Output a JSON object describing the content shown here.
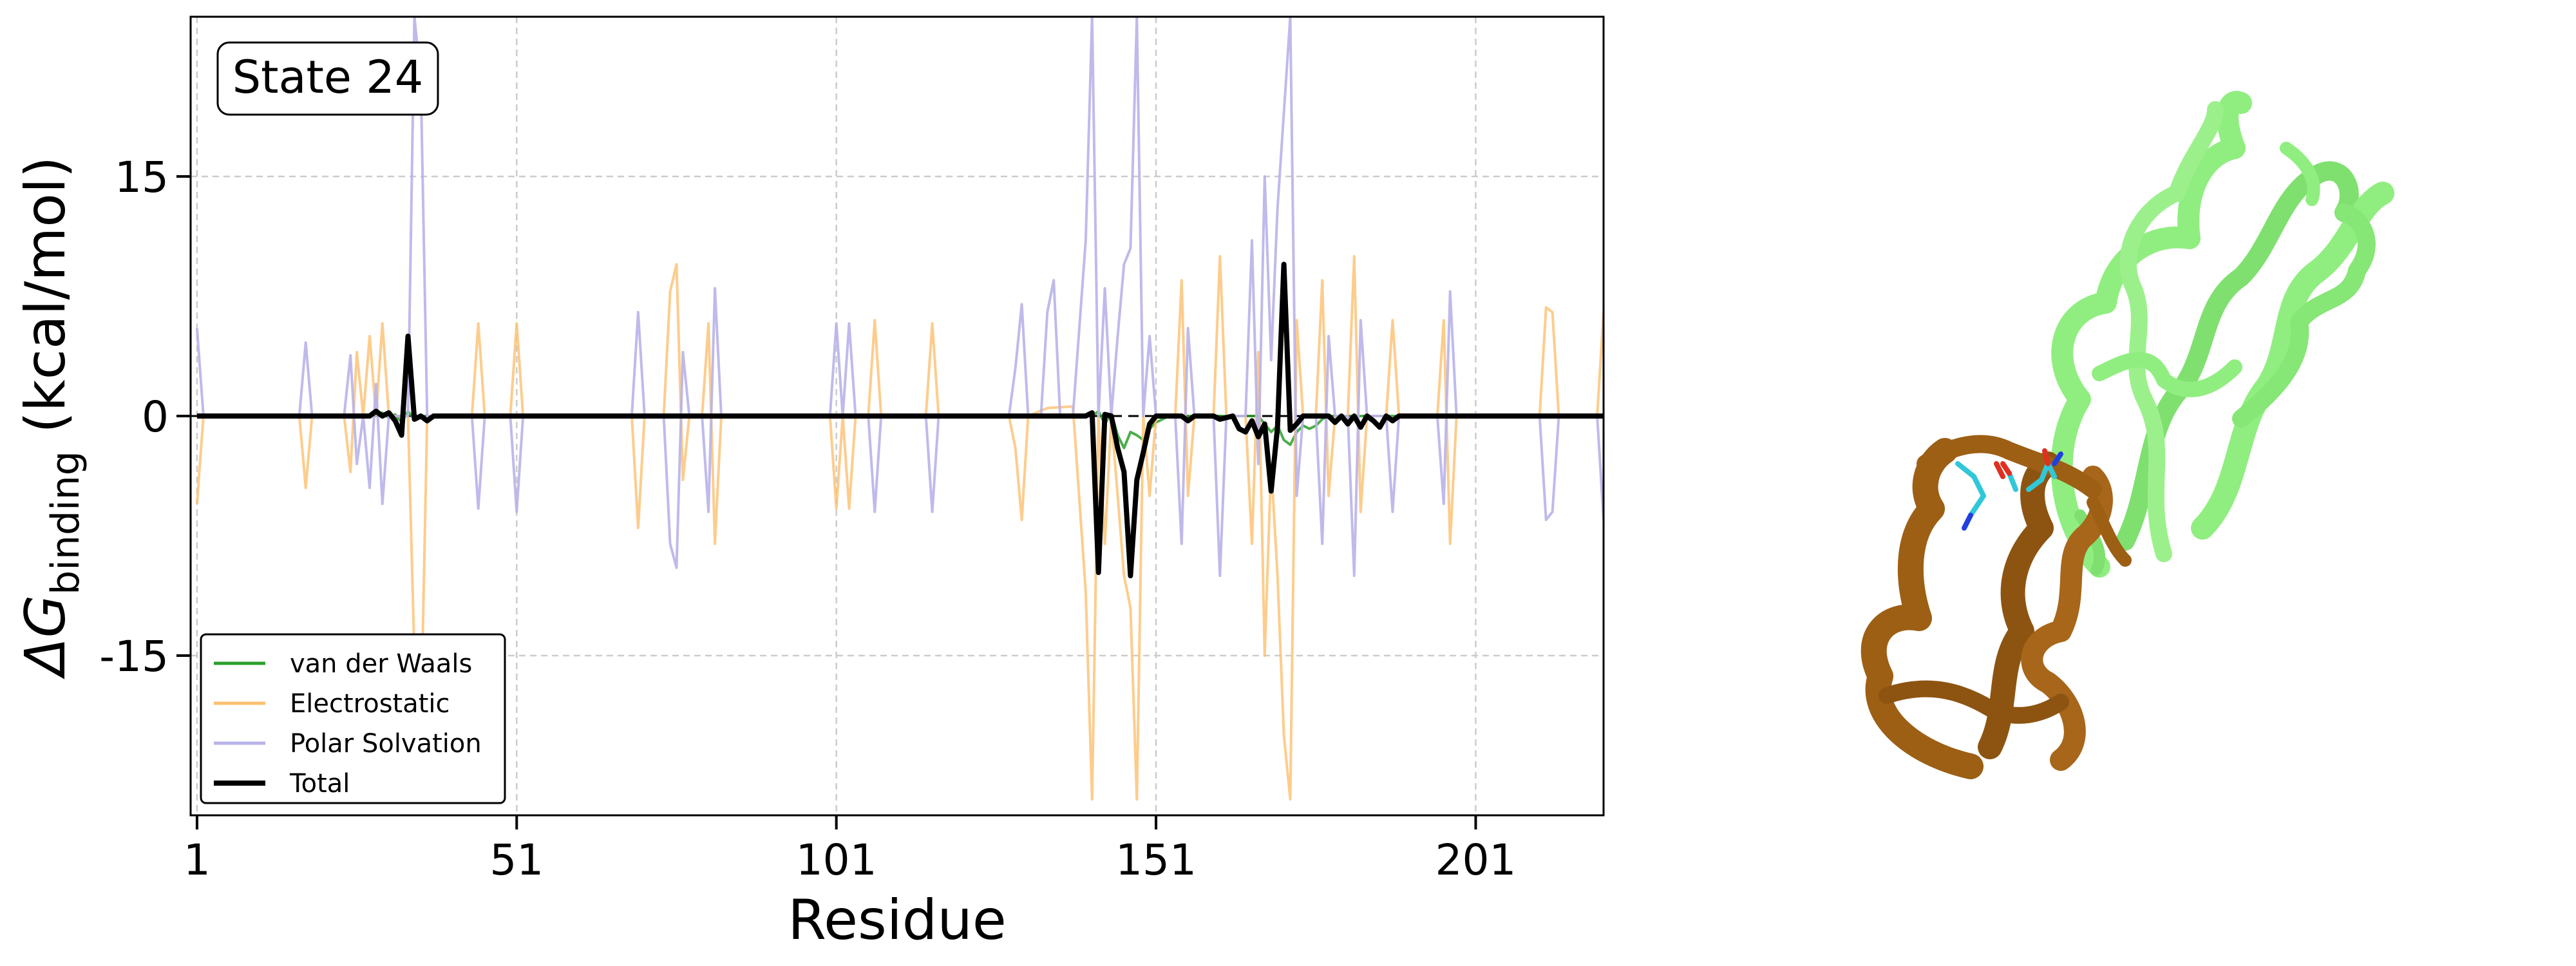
{
  "chart_data": {
    "type": "line",
    "title": "",
    "annotation": "State 24",
    "xlabel": "Residue",
    "ylabel_prefix": "ΔG",
    "ylabel_subscript": "binding",
    "ylabel_suffix": " (kcal/mol)",
    "xlim": [
      0,
      221
    ],
    "ylim": [
      -25,
      25
    ],
    "xticks": [
      1,
      51,
      101,
      151,
      201
    ],
    "yticks": [
      15,
      0,
      -15
    ],
    "ytick_labels": [
      "15",
      "0",
      "-15"
    ],
    "grid": true,
    "legend_position": "lower-left",
    "series": [
      {
        "name": "van der Waals",
        "color": "#2ca02c",
        "points": [
          [
            1,
            0
          ],
          [
            28,
            0
          ],
          [
            30,
            0.2
          ],
          [
            31,
            -0.1
          ],
          [
            32,
            0.1
          ],
          [
            33,
            -0.4
          ],
          [
            34,
            0.3
          ],
          [
            35,
            -0.2
          ],
          [
            36,
            0
          ],
          [
            141,
            0
          ],
          [
            142,
            0.3
          ],
          [
            143,
            -0.5
          ],
          [
            144,
            0.2
          ],
          [
            145,
            -1.2
          ],
          [
            146,
            -2.0
          ],
          [
            147,
            -1.0
          ],
          [
            148,
            -1.2
          ],
          [
            149,
            -1.5
          ],
          [
            150,
            -0.8
          ],
          [
            151,
            -0.4
          ],
          [
            152,
            -0.2
          ],
          [
            153,
            0
          ],
          [
            167,
            0
          ],
          [
            168,
            -0.5
          ],
          [
            169,
            -1.0
          ],
          [
            170,
            -0.6
          ],
          [
            171,
            -1.5
          ],
          [
            172,
            -1.8
          ],
          [
            173,
            -1.0
          ],
          [
            174,
            -0.6
          ],
          [
            175,
            -0.8
          ],
          [
            176,
            -0.6
          ],
          [
            177,
            -0.2
          ],
          [
            178,
            0
          ],
          [
            221,
            0
          ]
        ]
      },
      {
        "name": "Electrostatic",
        "color": "#fdbf6f",
        "points": [
          [
            1,
            -5.5
          ],
          [
            2,
            0
          ],
          [
            17,
            0
          ],
          [
            18,
            -4.5
          ],
          [
            19,
            0
          ],
          [
            24,
            0
          ],
          [
            25,
            -3.5
          ],
          [
            26,
            4
          ],
          [
            27,
            0
          ],
          [
            28,
            5
          ],
          [
            29,
            0
          ],
          [
            30,
            5.8
          ],
          [
            31,
            0
          ],
          [
            34,
            0
          ],
          [
            35,
            -15
          ],
          [
            36,
            -20
          ],
          [
            37,
            0
          ],
          [
            44,
            0
          ],
          [
            45,
            5.8
          ],
          [
            46,
            0
          ],
          [
            50,
            0
          ],
          [
            51,
            5.8
          ],
          [
            52,
            0
          ],
          [
            69,
            0
          ],
          [
            70,
            -7
          ],
          [
            71,
            0
          ],
          [
            74,
            0
          ],
          [
            75,
            7.8
          ],
          [
            76,
            9.5
          ],
          [
            77,
            -4
          ],
          [
            78,
            0
          ],
          [
            80,
            0
          ],
          [
            81,
            5.8
          ],
          [
            82,
            -8
          ],
          [
            83,
            0
          ],
          [
            100,
            0
          ],
          [
            101,
            -5.8
          ],
          [
            102,
            0
          ],
          [
            102,
            0
          ],
          [
            103,
            -5.8
          ],
          [
            104,
            0
          ],
          [
            106,
            0
          ],
          [
            107,
            6
          ],
          [
            108,
            0
          ],
          [
            115,
            0
          ],
          [
            116,
            5.8
          ],
          [
            117,
            0
          ],
          [
            128,
            0
          ],
          [
            129,
            -2
          ],
          [
            130,
            -6.5
          ],
          [
            131,
            0
          ],
          [
            134,
            0.5
          ],
          [
            138,
            0.6
          ],
          [
            140,
            -11
          ],
          [
            141,
            -24
          ],
          [
            142,
            0
          ],
          [
            143,
            -8
          ],
          [
            144,
            0
          ],
          [
            145,
            -5
          ],
          [
            146,
            -10
          ],
          [
            147,
            -12
          ],
          [
            148,
            -24
          ],
          [
            149,
            0
          ],
          [
            150,
            -5
          ],
          [
            151,
            0
          ],
          [
            154,
            0
          ],
          [
            155,
            8.5
          ],
          [
            156,
            -5
          ],
          [
            157,
            0
          ],
          [
            160,
            0
          ],
          [
            161,
            10
          ],
          [
            162,
            0
          ],
          [
            165,
            0
          ],
          [
            166,
            -8
          ],
          [
            167,
            4
          ],
          [
            168,
            -15
          ],
          [
            169,
            -3
          ],
          [
            170,
            -10
          ],
          [
            171,
            -20
          ],
          [
            172,
            -24
          ],
          [
            173,
            6
          ],
          [
            174,
            0
          ],
          [
            176,
            0
          ],
          [
            177,
            8.5
          ],
          [
            178,
            -5
          ],
          [
            179,
            0
          ],
          [
            181,
            0
          ],
          [
            182,
            10
          ],
          [
            183,
            -6
          ],
          [
            184,
            0
          ],
          [
            187,
            0
          ],
          [
            188,
            6
          ],
          [
            189,
            0
          ],
          [
            195,
            0
          ],
          [
            196,
            6
          ],
          [
            197,
            -8
          ],
          [
            198,
            0
          ],
          [
            211,
            0
          ],
          [
            212,
            6.8
          ],
          [
            213,
            6.5
          ],
          [
            214,
            0
          ],
          [
            220,
            0
          ],
          [
            221,
            6.5
          ]
        ]
      },
      {
        "name": "Polar Solvation",
        "color": "#b8b3e9",
        "points": [
          [
            1,
            5.5
          ],
          [
            2,
            0
          ],
          [
            17,
            0
          ],
          [
            18,
            4.6
          ],
          [
            19,
            0
          ],
          [
            24,
            0
          ],
          [
            25,
            3.8
          ],
          [
            26,
            -3
          ],
          [
            27,
            0
          ],
          [
            28,
            -4.5
          ],
          [
            29,
            2
          ],
          [
            30,
            -5.5
          ],
          [
            31,
            0
          ],
          [
            34,
            0
          ],
          [
            35,
            25
          ],
          [
            36,
            21
          ],
          [
            37,
            0
          ],
          [
            44,
            0
          ],
          [
            45,
            -5.8
          ],
          [
            46,
            0
          ],
          [
            50,
            0
          ],
          [
            51,
            -6
          ],
          [
            52,
            0
          ],
          [
            69,
            0
          ],
          [
            70,
            6.5
          ],
          [
            71,
            0
          ],
          [
            74,
            0
          ],
          [
            75,
            -8
          ],
          [
            76,
            -9.5
          ],
          [
            77,
            4
          ],
          [
            78,
            0
          ],
          [
            80,
            0
          ],
          [
            81,
            -6
          ],
          [
            82,
            8
          ],
          [
            83,
            0
          ],
          [
            100,
            0
          ],
          [
            101,
            5.8
          ],
          [
            102,
            0
          ],
          [
            102,
            0
          ],
          [
            103,
            5.8
          ],
          [
            104,
            0
          ],
          [
            106,
            0
          ],
          [
            107,
            -6
          ],
          [
            108,
            0
          ],
          [
            115,
            0
          ],
          [
            116,
            -6
          ],
          [
            117,
            0
          ],
          [
            128,
            0
          ],
          [
            129,
            3
          ],
          [
            130,
            7
          ],
          [
            131,
            0
          ],
          [
            133,
            0
          ],
          [
            134,
            6.5
          ],
          [
            135,
            8.5
          ],
          [
            136,
            0
          ],
          [
            138,
            0
          ],
          [
            140,
            11
          ],
          [
            141,
            25
          ],
          [
            142,
            0
          ],
          [
            143,
            8
          ],
          [
            144,
            0
          ],
          [
            145,
            5
          ],
          [
            146,
            9.5
          ],
          [
            147,
            10.5
          ],
          [
            148,
            25
          ],
          [
            149,
            0
          ],
          [
            150,
            5
          ],
          [
            151,
            0
          ],
          [
            154,
            0
          ],
          [
            155,
            -8
          ],
          [
            156,
            5.5
          ],
          [
            157,
            0
          ],
          [
            160,
            0
          ],
          [
            161,
            -10
          ],
          [
            162,
            0
          ],
          [
            165,
            0
          ],
          [
            166,
            11
          ],
          [
            167,
            -3
          ],
          [
            168,
            15
          ],
          [
            169,
            3.5
          ],
          [
            170,
            13
          ],
          [
            171,
            19
          ],
          [
            172,
            25
          ],
          [
            173,
            -5
          ],
          [
            174,
            0
          ],
          [
            176,
            0
          ],
          [
            177,
            -8
          ],
          [
            178,
            5
          ],
          [
            179,
            0
          ],
          [
            181,
            0
          ],
          [
            182,
            -10
          ],
          [
            183,
            6
          ],
          [
            184,
            0
          ],
          [
            187,
            0
          ],
          [
            188,
            -6
          ],
          [
            189,
            0
          ],
          [
            195,
            0
          ],
          [
            196,
            -5.5
          ],
          [
            197,
            7.8
          ],
          [
            198,
            0
          ],
          [
            211,
            0
          ],
          [
            212,
            -6.5
          ],
          [
            213,
            -6
          ],
          [
            214,
            0
          ],
          [
            220,
            0
          ],
          [
            221,
            -6.5
          ]
        ]
      },
      {
        "name": "Total",
        "color": "#000000",
        "points": [
          [
            1,
            0
          ],
          [
            28,
            0
          ],
          [
            29,
            0.3
          ],
          [
            30,
            0
          ],
          [
            31,
            0.2
          ],
          [
            32,
            -0.3
          ],
          [
            33,
            -1.2
          ],
          [
            34,
            5
          ],
          [
            35,
            -0.2
          ],
          [
            36,
            0
          ],
          [
            37,
            -0.3
          ],
          [
            38,
            0
          ],
          [
            140,
            0
          ],
          [
            141,
            0.2
          ],
          [
            142,
            -9.8
          ],
          [
            143,
            0.1
          ],
          [
            144,
            0
          ],
          [
            145,
            -2
          ],
          [
            146,
            -3.5
          ],
          [
            147,
            -10
          ],
          [
            148,
            -4
          ],
          [
            149,
            -2.3
          ],
          [
            150,
            -0.5
          ],
          [
            151,
            0
          ],
          [
            155,
            0
          ],
          [
            156,
            -0.3
          ],
          [
            157,
            0
          ],
          [
            160,
            0
          ],
          [
            161,
            -0.2
          ],
          [
            163,
            0
          ],
          [
            164,
            -0.8
          ],
          [
            165,
            -1
          ],
          [
            166,
            -0.3
          ],
          [
            167,
            -1.3
          ],
          [
            168,
            -0.5
          ],
          [
            169,
            -4.7
          ],
          [
            170,
            -0.7
          ],
          [
            171,
            9.5
          ],
          [
            172,
            -0.9
          ],
          [
            173,
            -0.5
          ],
          [
            174,
            0
          ],
          [
            178,
            0
          ],
          [
            179,
            -0.4
          ],
          [
            180,
            0
          ],
          [
            181,
            -0.5
          ],
          [
            182,
            0
          ],
          [
            183,
            -0.7
          ],
          [
            184,
            0
          ],
          [
            185,
            -0.3
          ],
          [
            186,
            -0.7
          ],
          [
            187,
            0
          ],
          [
            188,
            -0.3
          ],
          [
            189,
            0
          ],
          [
            221,
            0
          ]
        ]
      }
    ]
  },
  "structure": {
    "domain_a_color": "#90ee80",
    "domain_b_color": "#9c5f14"
  }
}
